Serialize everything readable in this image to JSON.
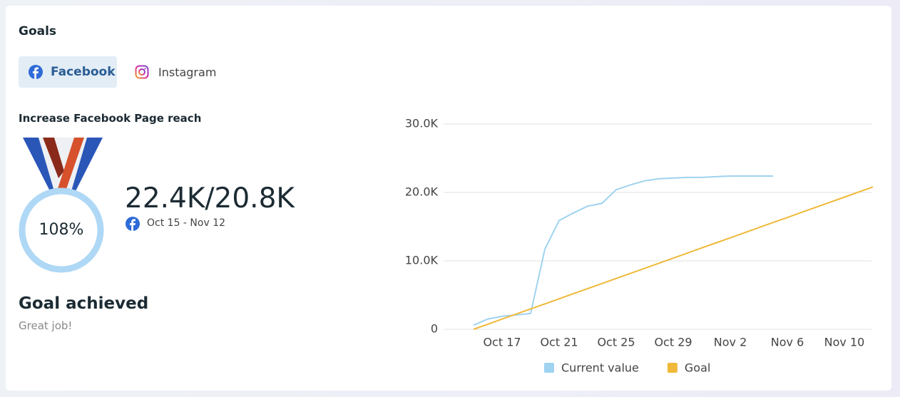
{
  "header": {
    "title": "Goals"
  },
  "tabs": [
    {
      "label": "Facebook"
    },
    {
      "label": "Instagram"
    }
  ],
  "goal": {
    "title": "Increase Facebook Page reach",
    "percent": "108%",
    "progress": "22.4K/20.8K",
    "dates": "Oct 15 - Nov 12",
    "status": "Goal achieved",
    "message": "Great job!"
  },
  "chart_data": {
    "type": "line",
    "categories": [
      null,
      null,
      "Oct 17",
      null,
      null,
      null,
      "Oct 21",
      null,
      null,
      null,
      "Oct 25",
      null,
      null,
      null,
      "Oct 29",
      null,
      null,
      null,
      "Nov 2",
      null,
      null,
      null,
      "Nov 6",
      null,
      null,
      null,
      "Nov 10",
      null,
      null
    ],
    "series": [
      {
        "name": "Current value",
        "color": "#9fd3f0",
        "values": [
          600,
          1500,
          1900,
          2100,
          2300,
          11700,
          15900,
          17000,
          18000,
          18400,
          20400,
          21100,
          21700,
          22000,
          22100,
          22200,
          22200,
          22300,
          22400,
          22400,
          22400,
          22400,
          null,
          null,
          null,
          null,
          null,
          null,
          null
        ]
      },
      {
        "name": "Goal",
        "color": "#f0b93a",
        "values": [
          0,
          740,
          1490,
          2230,
          2970,
          3710,
          4460,
          5200,
          5940,
          6690,
          7430,
          8170,
          8910,
          9660,
          10400,
          11140,
          11890,
          12630,
          13370,
          14110,
          14860,
          15600,
          16340,
          17090,
          17830,
          18570,
          19310,
          20060,
          20800
        ]
      }
    ],
    "ylim": [
      0,
      30000
    ],
    "yticks": [
      0,
      {
        "value": 10000,
        "label": "10.0K"
      },
      {
        "value": 20000,
        "label": "20.0K"
      },
      {
        "value": 30000,
        "label": "30.0K"
      }
    ],
    "grid": true
  }
}
